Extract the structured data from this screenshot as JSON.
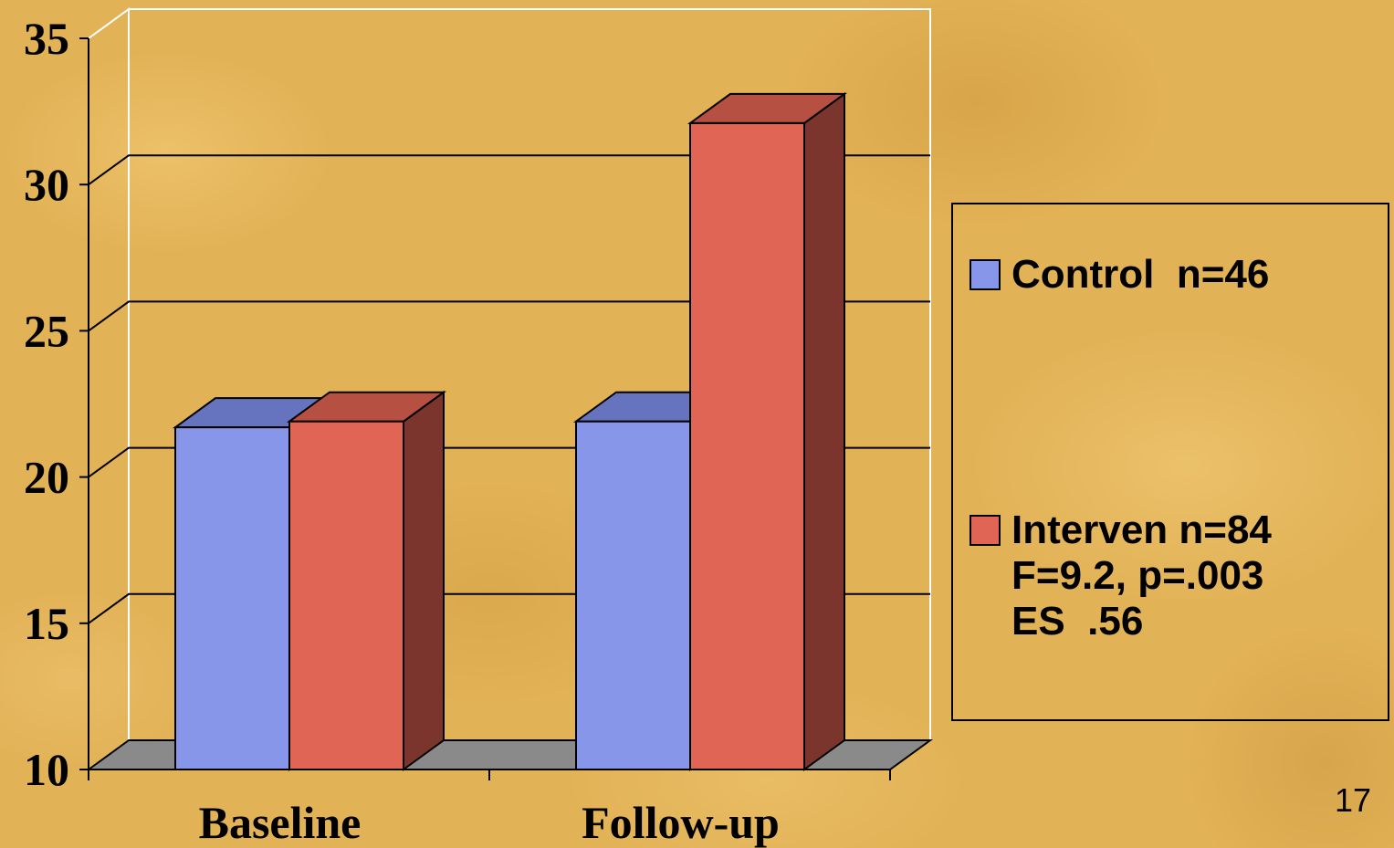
{
  "slide": {
    "number": "17"
  },
  "colors": {
    "control_front": "#8796e8",
    "control_top": "#6674bf",
    "intervention_front": "#e06555",
    "intervention_top": "#b55042",
    "intervention_side": "#7c352c",
    "floor": "#8a8a8a",
    "gridline": "#000000"
  },
  "legend": {
    "items": [
      {
        "label": "Control  n=46",
        "color": "#8796e8"
      },
      {
        "label": "Interven n=84\nF=9.2, p=.003\nES  .56",
        "color": "#e06555"
      }
    ]
  },
  "chart_data": {
    "type": "bar",
    "style": "3d-clustered",
    "categories": [
      "Baseline",
      "Follow-up"
    ],
    "series": [
      {
        "name": "Control  n=46",
        "values": [
          21.7,
          21.9
        ]
      },
      {
        "name": "Interven n=84",
        "values": [
          21.9,
          32.1
        ]
      }
    ],
    "ylim": [
      10,
      35
    ],
    "yticks": [
      "10",
      "15",
      "20",
      "25",
      "30",
      "35"
    ],
    "grid": true,
    "legend_position": "right"
  }
}
